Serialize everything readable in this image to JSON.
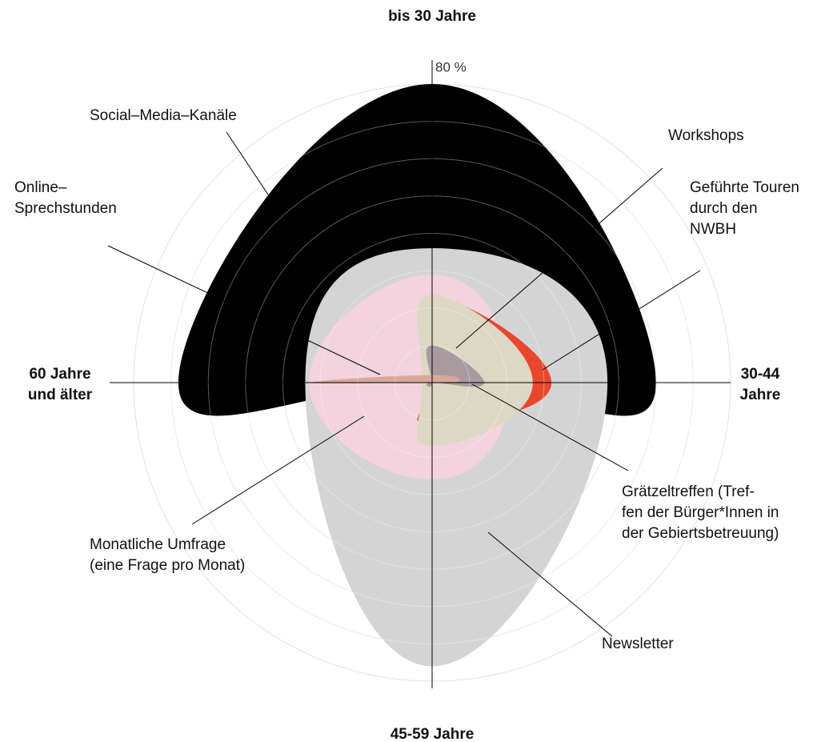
{
  "chart_data": {
    "type": "radar",
    "categories": [
      "bis 30 Jahre",
      "30-44\nJahre",
      "45-59 Jahre",
      "60 Jahre\nund älter"
    ],
    "ylim": [
      0,
      80
    ],
    "yticks": [
      0,
      10,
      20,
      30,
      40,
      50,
      60,
      70,
      {
        "value": 80,
        "label": "80 %"
      }
    ],
    "grid": true,
    "series": [
      {
        "name": "Social–Media–Kanäle",
        "color": "#000000",
        "values": [
          80,
          60,
          0,
          68
        ]
      },
      {
        "name": "Newsletter",
        "color": "#d4d4d4",
        "values": [
          36,
          47,
          76,
          34
        ]
      },
      {
        "name": "Monatliche Umfrage\n(eine Frage pro Monat)",
        "color": "#f3d3de",
        "values": [
          29,
          21,
          26,
          33
        ]
      },
      {
        "name": "Geführte Touren\ndurch den\nNWBH",
        "color": "#e8472e",
        "values": [
          23,
          32,
          11,
          1
        ]
      },
      {
        "name": "Workshops",
        "color": "#dcd8c4",
        "values": [
          23.5,
          27,
          17,
          2.5
        ]
      },
      {
        "name": "Grätzeltreffen (Tref-\nfen der Bürger*Innen in\nder Gebiertsbetreuung)",
        "color": "#a89a9e",
        "values": [
          10,
          14,
          0,
          0
        ]
      },
      {
        "name": "Online–\nSprechstunden",
        "color": "#d8a89a",
        "values": [
          2,
          7,
          0,
          33
        ]
      }
    ]
  }
}
